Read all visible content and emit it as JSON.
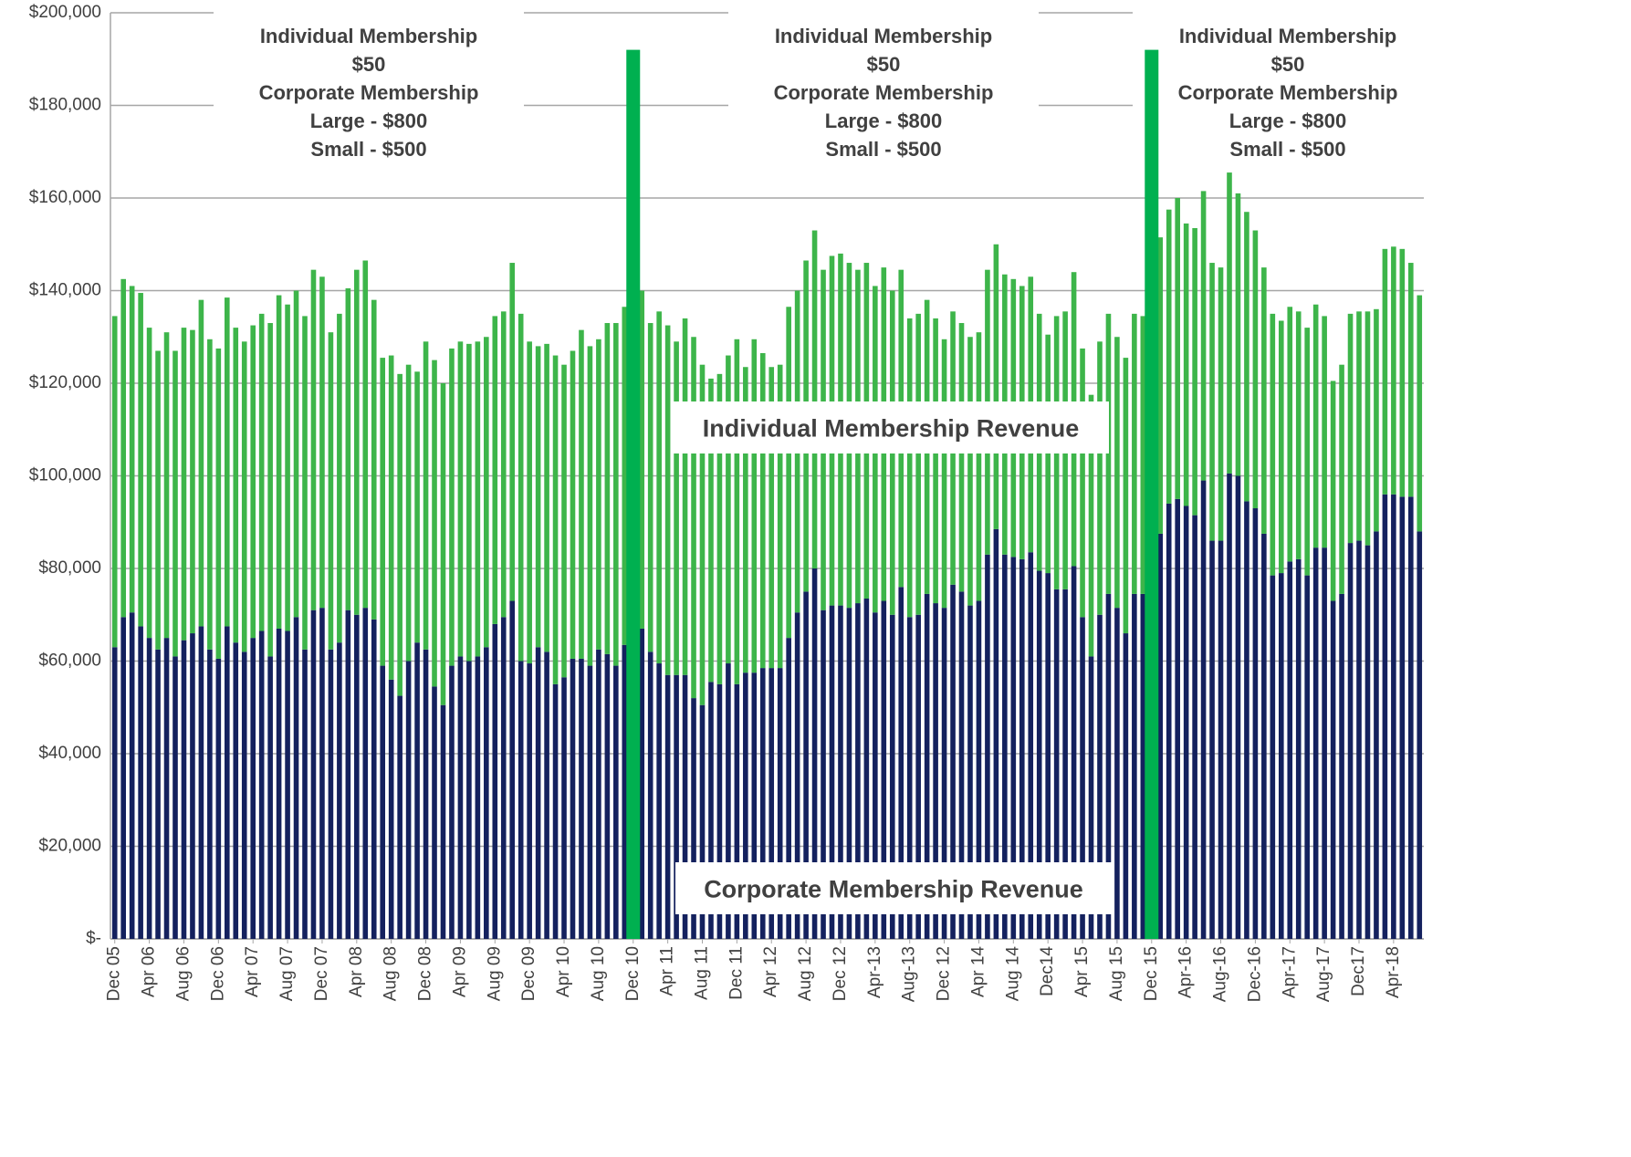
{
  "chart_data": {
    "type": "stacked-bar",
    "categories": [
      "Dec 05",
      null,
      null,
      null,
      "Apr 06",
      null,
      null,
      null,
      "Aug 06",
      null,
      null,
      null,
      "Dec 06",
      null,
      null,
      null,
      "Apr 07",
      null,
      null,
      null,
      "Aug 07",
      null,
      null,
      null,
      "Dec 07",
      null,
      null,
      null,
      "Apr 08",
      null,
      null,
      null,
      "Aug 08",
      null,
      null,
      null,
      "Dec 08",
      null,
      null,
      null,
      "Apr 09",
      null,
      null,
      null,
      "Aug 09",
      null,
      null,
      null,
      "Dec 09",
      null,
      null,
      null,
      "Apr 10",
      null,
      null,
      null,
      "Aug 10",
      null,
      null,
      null,
      "Dec 10",
      null,
      null,
      null,
      "Apr 11",
      null,
      null,
      null,
      "Aug 11",
      null,
      null,
      null,
      "Dec 11",
      null,
      null,
      null,
      "Apr 12",
      null,
      null,
      null,
      "Aug 12",
      null,
      null,
      null,
      "Dec 12",
      null,
      null,
      null,
      "Apr-13",
      null,
      null,
      null,
      "Aug-13",
      null,
      null,
      null,
      "Dec 12",
      null,
      null,
      null,
      "Apr 14",
      null,
      null,
      null,
      "Aug 14",
      null,
      null,
      null,
      "Dec14",
      null,
      null,
      null,
      "Apr 15",
      null,
      null,
      null,
      "Aug 15",
      null,
      null,
      null,
      "Dec 15",
      null,
      null,
      null,
      "Apr-16",
      null,
      null,
      null,
      "Aug-16",
      null,
      null,
      null,
      "Dec-16",
      null,
      null,
      null,
      "Apr-17",
      null,
      null,
      null,
      "Aug-17",
      null,
      null,
      null,
      "Dec17",
      null,
      null,
      null,
      "Apr-18",
      null,
      null,
      null
    ],
    "series": [
      {
        "name": "Corporate Membership Revenue",
        "color": "#14215e",
        "values": [
          63000,
          69500,
          70500,
          67500,
          65000,
          62500,
          65000,
          61000,
          64500,
          66000,
          67500,
          62500,
          60500,
          67500,
          64000,
          62000,
          65000,
          66500,
          61000,
          67000,
          66500,
          69500,
          62500,
          71000,
          71500,
          62500,
          64000,
          71000,
          70000,
          71500,
          69000,
          59000,
          56000,
          52500,
          60000,
          64000,
          62500,
          54500,
          50500,
          59000,
          61000,
          60000,
          61000,
          63000,
          68000,
          69500,
          73000,
          60000,
          59500,
          63000,
          62000,
          55000,
          56500,
          60500,
          60500,
          59000,
          62500,
          61500,
          59000,
          63500,
          null,
          67000,
          62000,
          59500,
          57000,
          57000,
          57000,
          52000,
          50500,
          55500,
          55000,
          59500,
          55000,
          57500,
          57500,
          58500,
          58500,
          58500,
          65000,
          70500,
          75000,
          80000,
          71000,
          72000,
          72000,
          71500,
          72500,
          73500,
          70500,
          73000,
          70000,
          76000,
          69500,
          70000,
          74500,
          72500,
          71500,
          76500,
          75000,
          72000,
          73000,
          83000,
          88500,
          83000,
          82500,
          82000,
          83500,
          79500,
          79000,
          75500,
          75500,
          80500,
          69500,
          61000,
          70000,
          74500,
          71500,
          66000,
          74500,
          74500,
          null,
          87500,
          94000,
          95000,
          93500,
          91500,
          99000,
          86000,
          86000,
          100500,
          100000,
          94500,
          93000,
          87500,
          78500,
          79000,
          81500,
          82000,
          78500,
          84500,
          84500,
          73000,
          74500,
          85500,
          86000,
          85000,
          88000,
          96000,
          96000,
          95500,
          95500,
          88000
        ]
      },
      {
        "name": "Individual Membership Revenue",
        "color": "#3db54a",
        "values": [
          71500,
          73000,
          70500,
          72000,
          67000,
          64500,
          66000,
          66000,
          67500,
          65500,
          70500,
          67000,
          67000,
          71000,
          68000,
          67000,
          67500,
          68500,
          72000,
          72000,
          70500,
          70500,
          72000,
          73500,
          71500,
          68500,
          71000,
          69500,
          74500,
          75000,
          69000,
          66500,
          70000,
          69500,
          64000,
          58500,
          66500,
          70500,
          69500,
          68500,
          68000,
          68500,
          68000,
          67000,
          66500,
          66000,
          73000,
          75000,
          69500,
          65000,
          66500,
          71000,
          67500,
          66500,
          71000,
          69000,
          67000,
          71500,
          74000,
          73000,
          null,
          73000,
          71000,
          76000,
          75500,
          72000,
          77000,
          78000,
          73500,
          65500,
          67000,
          66500,
          74500,
          66000,
          72000,
          68000,
          65000,
          65500,
          71500,
          69500,
          71500,
          73000,
          73500,
          75500,
          76000,
          74500,
          72000,
          72500,
          70500,
          72000,
          70000,
          68500,
          64500,
          65000,
          63500,
          61500,
          58000,
          59000,
          58000,
          58000,
          58000,
          61500,
          61500,
          60500,
          60000,
          59000,
          59500,
          55500,
          51500,
          59000,
          60000,
          63500,
          58000,
          56500,
          59000,
          60500,
          58500,
          59500,
          60500,
          60000,
          null,
          64000,
          63500,
          65000,
          61000,
          62000,
          62500,
          60000,
          59000,
          65000,
          61000,
          62500,
          60000,
          57500,
          56500,
          54500,
          55000,
          53500,
          53500,
          52500,
          50000,
          47500,
          49500,
          49500,
          49500,
          50500,
          48000,
          53000,
          53500,
          53500,
          50500,
          51000
        ]
      },
      {
        "color": "#00b050",
        "values": [
          null,
          null,
          null,
          null,
          null,
          null,
          null,
          null,
          null,
          null,
          null,
          null,
          null,
          null,
          null,
          null,
          null,
          null,
          null,
          null,
          null,
          null,
          null,
          null,
          null,
          null,
          null,
          null,
          null,
          null,
          null,
          null,
          null,
          null,
          null,
          null,
          null,
          null,
          null,
          null,
          null,
          null,
          null,
          null,
          null,
          null,
          null,
          null,
          null,
          null,
          null,
          null,
          null,
          null,
          null,
          null,
          null,
          null,
          null,
          null,
          192000,
          null,
          null,
          null,
          null,
          null,
          null,
          null,
          null,
          null,
          null,
          null,
          null,
          null,
          null,
          null,
          null,
          null,
          null,
          null,
          null,
          null,
          null,
          null,
          null,
          null,
          null,
          null,
          null,
          null,
          null,
          null,
          null,
          null,
          null,
          null,
          null,
          null,
          null,
          null,
          null,
          null,
          null,
          null,
          null,
          null,
          null,
          null,
          null,
          null,
          null,
          null,
          null,
          null,
          null,
          null,
          null,
          null,
          null,
          null,
          192000,
          null,
          null,
          null,
          null,
          null,
          null,
          null,
          null,
          null,
          null,
          null,
          null,
          null,
          null,
          null,
          null,
          null,
          null,
          null,
          null,
          null,
          null,
          null,
          null,
          null,
          null,
          null,
          null,
          null,
          null,
          null
        ]
      }
    ],
    "ylim": [
      0,
      200000
    ],
    "yticks": [
      {
        "value": 0,
        "label": "$-"
      },
      {
        "value": 20000,
        "label": "$20,000"
      },
      {
        "value": 40000,
        "label": "$40,000"
      },
      {
        "value": 60000,
        "label": "$60,000"
      },
      {
        "value": 80000,
        "label": "$80,000"
      },
      {
        "value": 100000,
        "label": "$100,000"
      },
      {
        "value": 120000,
        "label": "$120,000"
      },
      {
        "value": 140000,
        "label": "$140,000"
      },
      {
        "value": 160000,
        "label": "$160,000"
      },
      {
        "value": 180000,
        "label": "$180,000"
      },
      {
        "value": 200000,
        "label": "$200,000"
      }
    ],
    "grid": true,
    "annotations": [
      {
        "lines": [
          "Individual Membership",
          "$50",
          "Corporate Membership",
          "Large - $800",
          "Small - $500"
        ]
      },
      {
        "lines": [
          "Individual Membership",
          "$50",
          "Corporate Membership",
          "Large - $800",
          "Small - $500"
        ]
      },
      {
        "lines": [
          "Individual Membership",
          "$50",
          "Corporate Membership",
          "Large - $800",
          "Small - $500"
        ]
      }
    ]
  }
}
